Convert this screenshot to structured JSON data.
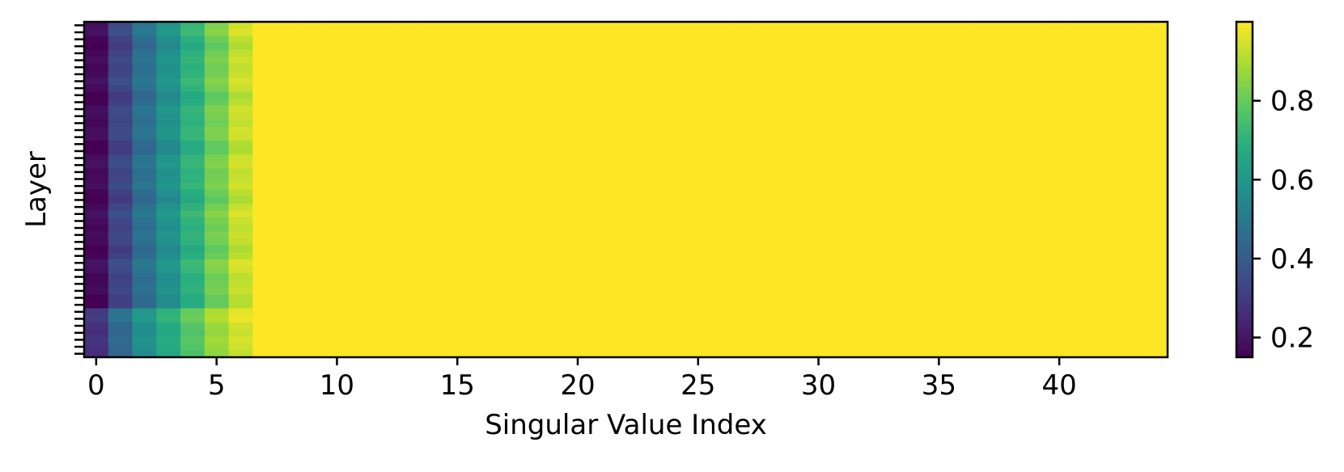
{
  "chart_data": {
    "type": "heatmap",
    "title": "",
    "xlabel": "Singular Value Index",
    "ylabel": "Layer",
    "x_range": [
      -0.5,
      44.5
    ],
    "n_columns": 45,
    "n_rows": 48,
    "x_ticks": [
      0,
      5,
      10,
      15,
      20,
      25,
      30,
      35,
      40
    ],
    "y_tick_labels_shown": false,
    "colormap": "viridis",
    "colorbar": {
      "range": [
        0.15,
        1.0
      ],
      "ticks": [
        0.2,
        0.4,
        0.6,
        0.8
      ],
      "tick_labels": [
        "0.2",
        "0.4",
        "0.6",
        "0.8"
      ]
    },
    "column_profile_note": "",
    "column_base_values": [
      0.17,
      0.33,
      0.47,
      0.58,
      0.7,
      0.82,
      0.93
    ],
    "bottom_rows_column_values": [
      0.28,
      0.45,
      0.58,
      0.68,
      0.78,
      0.88,
      0.95
    ],
    "bottom_rows_count": 7,
    "remaining_columns_value": 1.0,
    "grid": false,
    "colors": {
      "frame": "#000000",
      "background": "#ffffff"
    }
  }
}
